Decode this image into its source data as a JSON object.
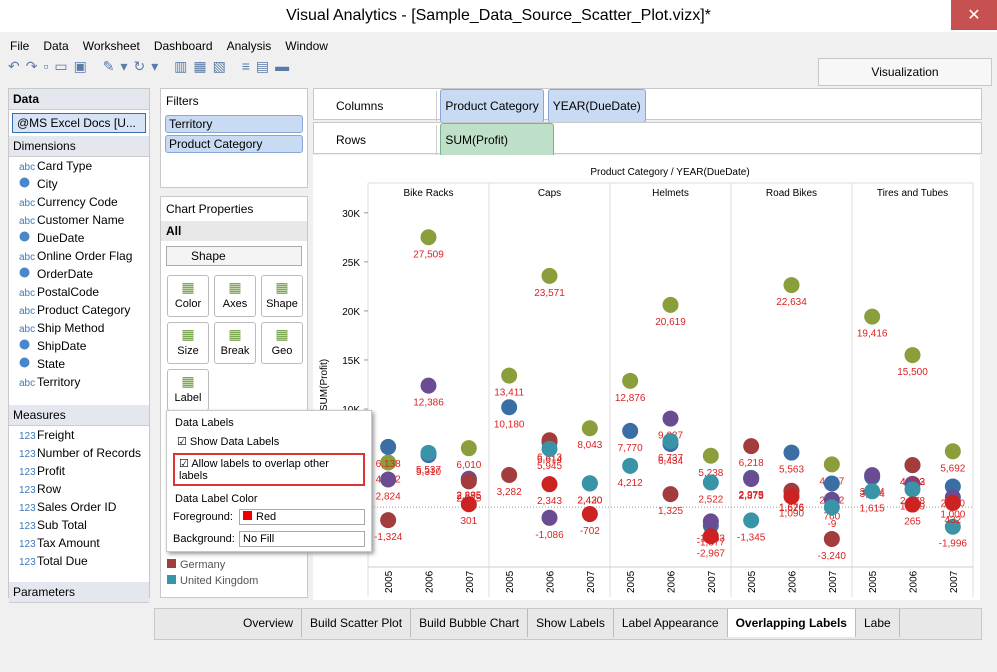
{
  "window": {
    "title": "Visual Analytics - [Sample_Data_Source_Scatter_Plot.vizx]*"
  },
  "menu": [
    "File",
    "Data",
    "Worksheet",
    "Dashboard",
    "Analysis",
    "Window"
  ],
  "visualization_tab": "Visualization",
  "data_panel": {
    "title": "Data",
    "source": "@MS Excel Docs [U...",
    "dimensions_title": "Dimensions",
    "dimensions": [
      {
        "icon": "abc",
        "name": "Card Type"
      },
      {
        "name": "City"
      },
      {
        "icon": "abc",
        "name": "Currency Code"
      },
      {
        "icon": "abc",
        "name": "Customer Name"
      },
      {
        "name": "DueDate"
      },
      {
        "icon": "abc",
        "name": "Online Order Flag"
      },
      {
        "name": "OrderDate"
      },
      {
        "icon": "abc",
        "name": "PostalCode"
      },
      {
        "icon": "abc",
        "name": "Product Category"
      },
      {
        "icon": "abc",
        "name": "Ship Method"
      },
      {
        "name": "ShipDate"
      },
      {
        "name": "State"
      },
      {
        "icon": "abc",
        "name": "Territory"
      }
    ],
    "measures_title": "Measures",
    "measures": [
      {
        "icon": "123",
        "name": "Freight"
      },
      {
        "icon": "123",
        "name": "Number of Records"
      },
      {
        "icon": "123",
        "name": "Profit"
      },
      {
        "icon": "123",
        "name": "Row"
      },
      {
        "icon": "123",
        "name": "Sales Order ID"
      },
      {
        "icon": "123",
        "name": "Sub Total"
      },
      {
        "icon": "123",
        "name": "Tax Amount"
      },
      {
        "icon": "123",
        "name": "Total Due"
      }
    ],
    "parameters_title": "Parameters"
  },
  "filters": {
    "title": "Filters",
    "items": [
      "Territory",
      "Product Category"
    ]
  },
  "chart_properties": {
    "title": "Chart Properties",
    "scope": "All",
    "mark_type": "Shape",
    "buttons": [
      "Color",
      "Axes",
      "Shape",
      "Size",
      "Break",
      "Geo",
      "Label"
    ]
  },
  "data_labels_popup": {
    "title": "Data Labels",
    "show_labels": "Show Data Labels",
    "allow_overlap": "Allow labels to overlap other labels",
    "color_title": "Data Label Color",
    "foreground_label": "Foreground:",
    "foreground": "Red",
    "background_label": "Background:",
    "background": "No Fill"
  },
  "shelves": {
    "columns_label": "Columns",
    "columns": [
      "Product Category",
      "YEAR(DueDate)"
    ],
    "rows_label": "Rows",
    "rows": [
      "SUM(Profit)"
    ]
  },
  "sheet_tabs": {
    "items": [
      "Overview",
      "Build Scatter Plot",
      "Build Bubble Chart",
      "Show Labels",
      "Label Appearance",
      "Overlapping Labels",
      "Labe"
    ],
    "active": 5
  },
  "chart_data": {
    "type": "scatter",
    "title": "Product Category / YEAR(DueDate)",
    "y_label": "SUM(Profit)",
    "panes": [
      "Bike Racks",
      "Caps",
      "Helmets",
      "Road Bikes",
      "Tires and Tubes"
    ],
    "categories": [
      "2005",
      "2006",
      "2007",
      "2005",
      "2006",
      "2007",
      "2005",
      "2006",
      "2007",
      "2005",
      "2006",
      "2007",
      "2005",
      "2006",
      "2007"
    ],
    "ylim": [
      -6100,
      31000
    ],
    "yticks": [
      {
        "value": 10000,
        "label": "10K"
      },
      {
        "value": 15000,
        "label": "15K"
      },
      {
        "value": 20000,
        "label": "20K"
      },
      {
        "value": 25000,
        "label": "25K"
      },
      {
        "value": 30000,
        "label": "30K"
      }
    ],
    "label_color": "#dd2222",
    "series": [
      {
        "color": "#8a9e3c",
        "values": [
          4552,
          27509,
          6010,
          13411,
          23571,
          8043,
          12876,
          20619,
          5238,
          2979,
          22634,
          4357,
          19416,
          15500,
          5692
        ],
        "value_labels": [
          "4,552",
          "27,509",
          "6,010",
          "13,411",
          "23,571",
          "8,043",
          "12,876",
          "20,619",
          "5,238",
          "2,979",
          "22,634",
          "4,357",
          "19,416",
          "15,500",
          "5,692"
        ]
      },
      {
        "color": "#3a6ea5",
        "values": [
          6138,
          5310,
          2875,
          10180,
          6614,
          2430,
          7770,
          6434,
          -1877,
          2975,
          5563,
          2412,
          3064,
          4282,
          2110
        ],
        "value_labels": [
          "6,138",
          "5,310",
          "2,875",
          "10,180",
          "6,614",
          "2,430",
          "7,770",
          "6,434",
          "-1,877",
          "2,975",
          "5,563",
          "2,412",
          "3,064",
          "4,282",
          "2,110"
        ]
      },
      {
        "color": "#6a4c93",
        "values": [
          2824,
          12386,
          2895,
          null,
          -1086,
          null,
          null,
          9027,
          -1453,
          2875,
          1626,
          760,
          3264,
          2378,
          1000
        ],
        "value_labels": [
          "2,824",
          "12,386",
          "2,895",
          null,
          "-1,086",
          null,
          null,
          "9,027",
          "-1,453",
          "2,875",
          "1,626",
          "760",
          "3,264",
          "2,378",
          "1,000"
        ]
      },
      {
        "name": "Germany",
        "color": "#a33c3c",
        "values": [
          -1324,
          null,
          2625,
          3282,
          6813,
          null,
          null,
          1325,
          null,
          6218,
          1676,
          -3240,
          null,
          4283,
          null
        ],
        "value_labels": [
          "-1,324",
          null,
          "2,625",
          "3,282",
          "6,813",
          null,
          null,
          "1,325",
          null,
          "6,218",
          "1,676",
          "-3,240",
          null,
          "4,283",
          null
        ]
      },
      {
        "name": "United Kingdom",
        "color": "#3a94a8",
        "values": [
          null,
          5537,
          null,
          null,
          5945,
          2420,
          4212,
          6737,
          2522,
          -1345,
          null,
          -9,
          1615,
          1809,
          -1996
        ],
        "value_labels": [
          null,
          "5,537",
          null,
          null,
          "5,945",
          "2,420",
          "4,212",
          "6,737",
          "2,522",
          "-1,345",
          null,
          "-9",
          "1,615",
          "1,809",
          "-1,996"
        ]
      },
      {
        "color": "#cc2222",
        "values": [
          null,
          null,
          301,
          null,
          2343,
          -702,
          null,
          null,
          -2967,
          null,
          1090,
          null,
          null,
          265,
          432
        ],
        "value_labels": [
          null,
          null,
          "301",
          null,
          "2,343",
          "-702",
          null,
          null,
          "-2,967",
          null,
          "1,090",
          null,
          null,
          "265",
          "432"
        ]
      }
    ]
  }
}
